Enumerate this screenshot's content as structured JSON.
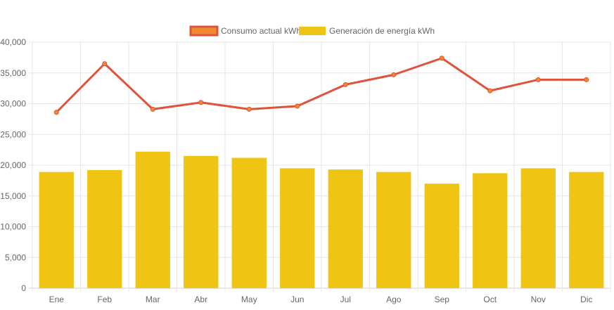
{
  "chart_data": {
    "type": "bar",
    "categories": [
      "Ene",
      "Feb",
      "Mar",
      "Abr",
      "May",
      "Jun",
      "Jul",
      "Ago",
      "Sep",
      "Oct",
      "Nov",
      "Dic"
    ],
    "series": [
      {
        "name": "Consumo actual kWh",
        "kind": "line",
        "color": "#e0523a",
        "values": [
          28600,
          36500,
          29100,
          30200,
          29100,
          29600,
          33100,
          34700,
          37400,
          32100,
          33900,
          33900
        ]
      },
      {
        "name": "Generación de energía kWh",
        "kind": "bar",
        "color": "#f0c412",
        "values": [
          18900,
          19200,
          22200,
          21500,
          21200,
          19500,
          19300,
          18900,
          17000,
          18700,
          19500,
          18900
        ]
      }
    ],
    "ylim": [
      0,
      40000
    ],
    "yticks": [
      "0",
      "5,000",
      "10,000",
      "15,000",
      "20,000",
      "25,000",
      "30,000",
      "35,000",
      "40,000"
    ],
    "grid": true,
    "legend_position": "top"
  }
}
